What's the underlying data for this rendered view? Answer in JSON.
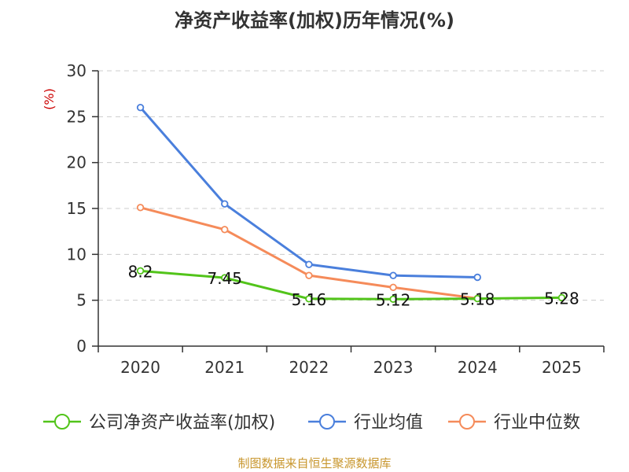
{
  "chart_data": {
    "type": "line",
    "title": "净资产收益率(加权)历年情况(%)",
    "ylabel": "(%)",
    "xlabel": "",
    "ylim": [
      0,
      30
    ],
    "yticks": [
      0,
      5,
      10,
      15,
      20,
      25,
      30
    ],
    "categories": [
      "2020",
      "2021",
      "2022",
      "2023",
      "2024",
      "2025"
    ],
    "grid": true,
    "legend_position": "bottom",
    "series": [
      {
        "name": "公司净资产收益率(加权)",
        "color": "#52c41a",
        "values": [
          8.2,
          7.45,
          5.16,
          5.12,
          5.18,
          5.28
        ],
        "labels": [
          "8.2",
          "7.45",
          "5.16",
          "5.12",
          "5.18",
          "5.28"
        ]
      },
      {
        "name": "行业均值",
        "color": "#4a7fdc",
        "values": [
          26.0,
          15.5,
          8.9,
          7.7,
          7.5,
          null
        ]
      },
      {
        "name": "行业中位数",
        "color": "#f58b5a",
        "values": [
          15.1,
          12.7,
          7.7,
          6.4,
          5.2,
          null
        ]
      }
    ]
  },
  "footer": {
    "source": "制图数据来自恒生聚源数据库"
  },
  "colors": {
    "unit": "#cc0000",
    "source": "#c8962d",
    "axis": "#333333",
    "grid": "#cccccc"
  }
}
